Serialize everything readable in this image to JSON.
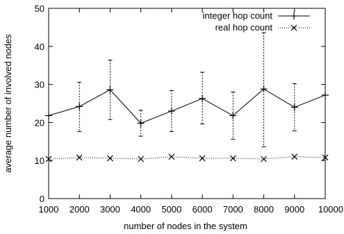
{
  "chart_data": {
    "type": "line",
    "title": "",
    "xlabel": "number of nodes in the system",
    "ylabel": "average number of involved nodes",
    "x": [
      1000,
      2000,
      3000,
      4000,
      5000,
      6000,
      7000,
      8000,
      9000,
      10000
    ],
    "xlim": [
      1000,
      10000
    ],
    "ylim": [
      0,
      50
    ],
    "x_ticks": [
      "1000",
      "2000",
      "3000",
      "4000",
      "5000",
      "6000",
      "7000",
      "8000",
      "9000",
      "10000"
    ],
    "y_ticks": [
      "0",
      "10",
      "20",
      "30",
      "40",
      "50"
    ],
    "grid": false,
    "legend_position": "top-right",
    "series": [
      {
        "name": "integer hop count",
        "style": "solid",
        "marker": "plus",
        "values": [
          21.8,
          24.2,
          28.6,
          19.8,
          23.0,
          26.3,
          21.8,
          28.8,
          24.0,
          27.2
        ],
        "error_low": [
          21.8,
          17.6,
          20.8,
          16.4,
          17.6,
          19.6,
          15.6,
          13.6,
          17.8,
          27.2
        ],
        "error_high": [
          21.8,
          30.6,
          36.4,
          23.2,
          28.4,
          33.2,
          28.0,
          43.6,
          30.2,
          27.2
        ]
      },
      {
        "name": "real hop count",
        "style": "dotted",
        "marker": "cross",
        "values": [
          10.4,
          10.8,
          10.6,
          10.4,
          11.0,
          10.6,
          10.6,
          10.4,
          11.0,
          10.8
        ]
      }
    ],
    "colors": {
      "axis": "#000000",
      "series": "#000000"
    }
  }
}
